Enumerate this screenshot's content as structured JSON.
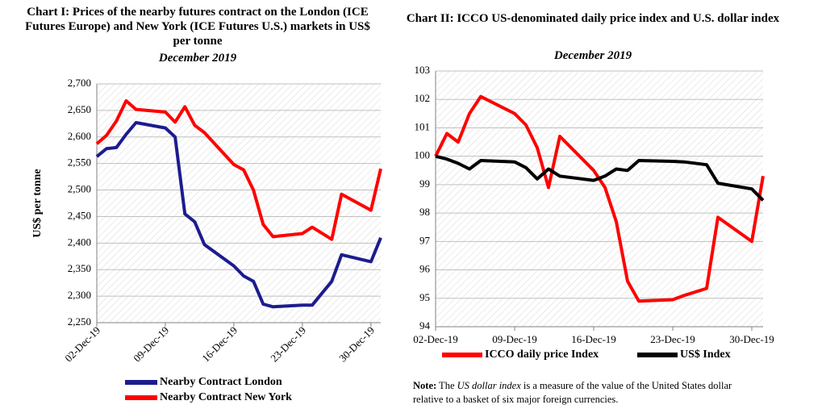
{
  "chart_data": [
    {
      "type": "line",
      "title": "Chart I: Prices of the nearby futures contract on the London (ICE Futures Europe) and New York (ICE Futures U.S.) markets in US$ per tonne",
      "subtitle": "December 2019",
      "ylabel": "US$ per tonne",
      "x": [
        "2019-12-02",
        "2019-12-03",
        "2019-12-04",
        "2019-12-05",
        "2019-12-06",
        "2019-12-09",
        "2019-12-10",
        "2019-12-11",
        "2019-12-12",
        "2019-12-13",
        "2019-12-16",
        "2019-12-17",
        "2019-12-18",
        "2019-12-19",
        "2019-12-20",
        "2019-12-23",
        "2019-12-24",
        "2019-12-26",
        "2019-12-27",
        "2019-12-30",
        "2019-12-31"
      ],
      "series": [
        {
          "name": "Nearby Contract London",
          "color": "#1c1c8f",
          "values": [
            2563,
            2578,
            2580,
            2605,
            2627,
            2617,
            2600,
            2455,
            2440,
            2397,
            2357,
            2338,
            2328,
            2285,
            2280,
            2283,
            2283,
            2328,
            2378,
            2365,
            2410
          ]
        },
        {
          "name": "Nearby Contract New York",
          "color": "#ff0000",
          "values": [
            2587,
            2603,
            2630,
            2668,
            2652,
            2647,
            2628,
            2657,
            2622,
            2608,
            2548,
            2538,
            2500,
            2435,
            2412,
            2418,
            2430,
            2407,
            2492,
            2462,
            2540
          ]
        }
      ],
      "xlim": [
        "2019-12-02",
        "2019-12-31"
      ],
      "xticks": [
        {
          "value": "2019-12-02",
          "label": "02-Dec-19"
        },
        {
          "value": "2019-12-09",
          "label": "09-Dec-19"
        },
        {
          "value": "2019-12-16",
          "label": "16-Dec-19"
        },
        {
          "value": "2019-12-23",
          "label": "23-Dec-19"
        },
        {
          "value": "2019-12-30",
          "label": "30-Dec-19"
        }
      ],
      "ylim": [
        2250,
        2700
      ],
      "yticks": [
        {
          "value": 2250,
          "label": "2,250"
        },
        {
          "value": 2300,
          "label": "2,300"
        },
        {
          "value": 2350,
          "label": "2,350"
        },
        {
          "value": 2400,
          "label": "2,400"
        },
        {
          "value": 2450,
          "label": "2,450"
        },
        {
          "value": 2500,
          "label": "2,500"
        },
        {
          "value": 2550,
          "label": "2,550"
        },
        {
          "value": 2600,
          "label": "2,600"
        },
        {
          "value": 2650,
          "label": "2,650"
        },
        {
          "value": 2700,
          "label": "2,700"
        }
      ],
      "grid": true,
      "legend": "bottom"
    },
    {
      "type": "line",
      "title": "Chart II: ICCO US-denominated daily price index and U.S. dollar index",
      "subtitle": "December 2019",
      "x": [
        "2019-12-02",
        "2019-12-03",
        "2019-12-04",
        "2019-12-05",
        "2019-12-06",
        "2019-12-09",
        "2019-12-10",
        "2019-12-11",
        "2019-12-12",
        "2019-12-13",
        "2019-12-16",
        "2019-12-17",
        "2019-12-18",
        "2019-12-19",
        "2019-12-20",
        "2019-12-23",
        "2019-12-24",
        "2019-12-26",
        "2019-12-27",
        "2019-12-30",
        "2019-12-31"
      ],
      "series": [
        {
          "name": "ICCO daily price Index",
          "color": "#ff0000",
          "values": [
            100.0,
            100.8,
            100.5,
            101.5,
            102.1,
            101.5,
            101.1,
            100.3,
            98.9,
            100.7,
            99.5,
            98.9,
            97.7,
            95.6,
            94.9,
            94.95,
            95.1,
            95.35,
            97.85,
            97.0,
            99.3
          ]
        },
        {
          "name": "US$ Index",
          "color": "#000000",
          "values": [
            100.0,
            99.9,
            99.75,
            99.55,
            99.85,
            99.8,
            99.6,
            99.2,
            99.55,
            99.3,
            99.15,
            99.3,
            99.55,
            99.5,
            99.85,
            99.82,
            99.8,
            99.7,
            99.05,
            98.85,
            98.45
          ]
        }
      ],
      "xlim": [
        "2019-12-02",
        "2019-12-31"
      ],
      "xticks": [
        {
          "value": "2019-12-02",
          "label": "02-Dec-19"
        },
        {
          "value": "2019-12-09",
          "label": "09-Dec-19"
        },
        {
          "value": "2019-12-16",
          "label": "16-Dec-19"
        },
        {
          "value": "2019-12-23",
          "label": "23-Dec-19"
        },
        {
          "value": "2019-12-30",
          "label": "30-Dec-19"
        }
      ],
      "ylim": [
        94,
        103
      ],
      "yticks": [
        94,
        95,
        96,
        97,
        98,
        99,
        100,
        101,
        102,
        103
      ],
      "grid": true,
      "legend": "bottom",
      "note": [
        "Note:",
        " The ",
        "US dollar index",
        " is a measure of the value of the United States dollar relative to a basket of six major foreign currencies."
      ]
    }
  ]
}
